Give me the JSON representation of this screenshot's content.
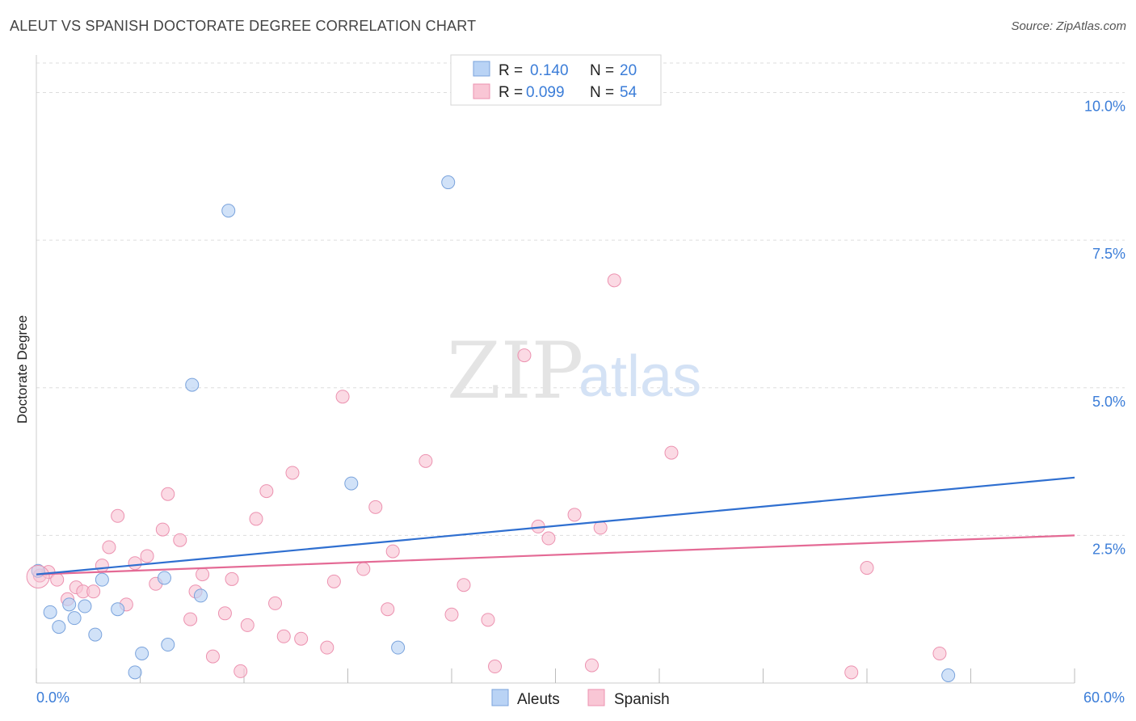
{
  "header": {
    "title": "ALEUT VS SPANISH DOCTORATE DEGREE CORRELATION CHART",
    "source": "Source: ZipAtlas.com"
  },
  "watermark": {
    "zip": "ZIP",
    "atlas": "atlas"
  },
  "legend_top": [
    {
      "r_label": "R =",
      "r_value": "0.140",
      "n_label": "N =",
      "n_value": "20"
    },
    {
      "r_label": "R =",
      "r_value": "0.099",
      "n_label": "N =",
      "n_value": "54"
    }
  ],
  "legend_bottom": [
    "Aleuts",
    "Spanish"
  ],
  "colors": {
    "aleut_fill": "#b9d3f5",
    "aleut_stroke": "#7aa3dc",
    "aleut_line": "#2f6fd0",
    "spanish_fill": "#f9c6d5",
    "spanish_stroke": "#ec92b0",
    "spanish_line": "#e46a95",
    "axis_text": "#3b7dd8",
    "grid": "#dddddd"
  },
  "chart_data": {
    "type": "scatter",
    "title": "ALEUT VS SPANISH DOCTORATE DEGREE CORRELATION CHART",
    "xlabel": "",
    "ylabel": "Doctorate Degree",
    "xlim": [
      0,
      60
    ],
    "ylim": [
      0,
      10.5
    ],
    "x_tick_labels": [
      "0.0%",
      "60.0%"
    ],
    "y_ticks": [
      2.5,
      5.0,
      7.5,
      10.0
    ],
    "y_tick_labels": [
      "2.5%",
      "5.0%",
      "7.5%",
      "10.0%"
    ],
    "grid": true,
    "legend_position": "top-center",
    "series": [
      {
        "name": "Aleuts",
        "r": 0.14,
        "n": 20,
        "trend": [
          [
            0,
            1.84
          ],
          [
            60,
            3.48
          ]
        ],
        "points": [
          [
            0.1,
            1.9
          ],
          [
            0.8,
            1.2
          ],
          [
            1.3,
            0.95
          ],
          [
            1.9,
            1.33
          ],
          [
            2.2,
            1.1
          ],
          [
            2.8,
            1.3
          ],
          [
            3.4,
            0.82
          ],
          [
            3.8,
            1.75
          ],
          [
            4.7,
            1.25
          ],
          [
            5.7,
            0.18
          ],
          [
            6.1,
            0.5
          ],
          [
            7.4,
            1.78
          ],
          [
            7.6,
            0.65
          ],
          [
            9.0,
            5.05
          ],
          [
            9.5,
            1.48
          ],
          [
            11.1,
            8.0
          ],
          [
            18.2,
            3.38
          ],
          [
            20.9,
            0.6
          ],
          [
            23.8,
            8.48
          ],
          [
            52.7,
            0.13
          ]
        ]
      },
      {
        "name": "Spanish",
        "r": 0.099,
        "n": 54,
        "trend": [
          [
            0,
            1.84
          ],
          [
            60,
            2.5
          ]
        ],
        "points": [
          [
            0.2,
            1.82
          ],
          [
            0.7,
            1.88
          ],
          [
            1.2,
            1.75
          ],
          [
            1.8,
            1.42
          ],
          [
            2.3,
            1.62
          ],
          [
            2.7,
            1.55
          ],
          [
            3.3,
            1.55
          ],
          [
            3.8,
            1.99
          ],
          [
            4.2,
            2.3
          ],
          [
            4.7,
            2.83
          ],
          [
            5.2,
            1.33
          ],
          [
            5.7,
            2.03
          ],
          [
            6.4,
            2.15
          ],
          [
            6.9,
            1.68
          ],
          [
            7.3,
            2.6
          ],
          [
            7.6,
            3.2
          ],
          [
            8.3,
            2.42
          ],
          [
            8.9,
            1.08
          ],
          [
            9.2,
            1.55
          ],
          [
            9.6,
            1.84
          ],
          [
            10.2,
            0.45
          ],
          [
            10.9,
            1.18
          ],
          [
            11.3,
            1.76
          ],
          [
            11.8,
            0.2
          ],
          [
            12.2,
            0.98
          ],
          [
            12.7,
            2.78
          ],
          [
            13.3,
            3.25
          ],
          [
            13.8,
            1.35
          ],
          [
            14.3,
            0.79
          ],
          [
            14.8,
            3.56
          ],
          [
            15.3,
            0.75
          ],
          [
            16.8,
            0.6
          ],
          [
            17.2,
            1.72
          ],
          [
            17.7,
            4.85
          ],
          [
            18.9,
            1.93
          ],
          [
            19.6,
            2.98
          ],
          [
            20.3,
            1.25
          ],
          [
            20.6,
            2.23
          ],
          [
            22.5,
            3.76
          ],
          [
            24.0,
            1.16
          ],
          [
            24.7,
            1.66
          ],
          [
            26.1,
            1.07
          ],
          [
            26.5,
            0.28
          ],
          [
            28.2,
            5.55
          ],
          [
            29.0,
            2.65
          ],
          [
            29.6,
            2.45
          ],
          [
            31.1,
            2.85
          ],
          [
            32.1,
            0.3
          ],
          [
            32.6,
            2.63
          ],
          [
            33.4,
            6.82
          ],
          [
            36.7,
            3.9
          ],
          [
            47.1,
            0.18
          ],
          [
            48.0,
            1.95
          ],
          [
            52.2,
            0.5
          ]
        ]
      }
    ]
  }
}
